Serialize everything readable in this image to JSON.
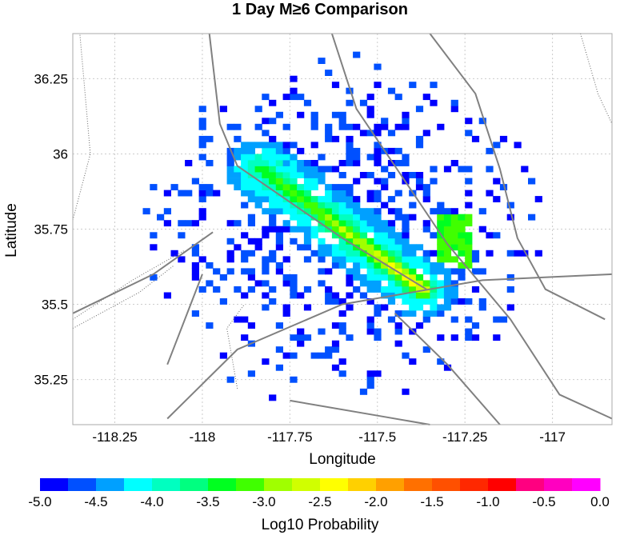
{
  "chart_data": {
    "type": "heatmap",
    "title": "1 Day M≥6 Comparison",
    "xlabel": "Longitude",
    "ylabel": "Latitude",
    "xlim": [
      -118.37,
      -116.83
    ],
    "ylim": [
      35.1,
      36.4
    ],
    "x_ticks": [
      -118.25,
      -118,
      -117.75,
      -117.5,
      -117.25,
      -117
    ],
    "x_tick_labels": [
      "-118.25",
      "-118",
      "-117.75",
      "-117.5",
      "-117.25",
      "-117"
    ],
    "y_ticks": [
      35.25,
      35.5,
      35.75,
      36,
      36.25
    ],
    "y_tick_labels": [
      "35.25",
      "35.5",
      "35.75",
      "36",
      "36.25"
    ],
    "grid": true,
    "cell_size_deg": 0.02,
    "colorbar": {
      "label": "Log10 Probability",
      "min": -5.0,
      "max": 0.0,
      "tick_values": [
        -5,
        -4.5,
        -4,
        -3.5,
        -3,
        -2.5,
        -2,
        -1.5,
        -1,
        -0.5,
        0
      ],
      "tick_labels": [
        "-5.0",
        "-4.5",
        "-4.0",
        "-3.5",
        "-3.0",
        "-2.5",
        "-2.0",
        "-1.5",
        "-1.0",
        "-0.5",
        "0.0"
      ],
      "colors": [
        "#0000ff",
        "#0050ff",
        "#00a0ff",
        "#00ffff",
        "#00ffc0",
        "#00ff80",
        "#00ff20",
        "#40ff00",
        "#a0ff00",
        "#d0ff00",
        "#ffff00",
        "#ffd000",
        "#ffa000",
        "#ff7000",
        "#ff5000",
        "#ff2800",
        "#ff0000",
        "#ff0080",
        "#ff00c0",
        "#ff00ff"
      ]
    },
    "main_band": {
      "from": [
        -117.83,
        35.95
      ],
      "to": [
        -117.37,
        35.55
      ],
      "log10_probability_peak": -2.2,
      "log10_probability_edge": -4.5,
      "peak_location": [
        -117.42,
        35.58
      ]
    },
    "secondary_patch": {
      "lon_range": [
        -117.34,
        -117.24
      ],
      "lat_range": [
        35.62,
        35.8
      ],
      "log10_probability": -3.3
    },
    "map_overlay": "fault and county lines"
  }
}
